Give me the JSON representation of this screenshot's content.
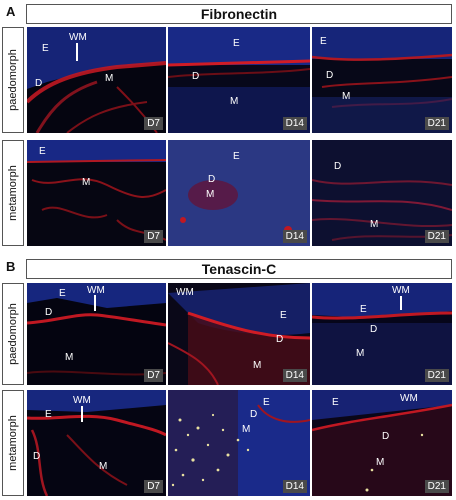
{
  "panel_a": {
    "letter": "A",
    "title": "Fibronectin",
    "rows": [
      {
        "label": "paedomorph",
        "tiles": [
          {
            "day": "D7",
            "labels": [
              "E",
              "D",
              "M",
              "WM"
            ]
          },
          {
            "day": "D14",
            "labels": [
              "E",
              "D",
              "M"
            ]
          },
          {
            "day": "D21",
            "labels": [
              "E",
              "D",
              "M"
            ]
          }
        ]
      },
      {
        "label": "metamorph",
        "tiles": [
          {
            "day": "D7",
            "labels": [
              "E",
              "M"
            ]
          },
          {
            "day": "D14",
            "labels": [
              "E",
              "D",
              "M"
            ]
          },
          {
            "day": "D21",
            "labels": [
              "D",
              "M"
            ]
          }
        ]
      }
    ]
  },
  "panel_b": {
    "letter": "B",
    "title": "Tenascin-C",
    "rows": [
      {
        "label": "paedomorph",
        "tiles": [
          {
            "day": "D7",
            "labels": [
              "E",
              "D",
              "M",
              "WM"
            ]
          },
          {
            "day": "D14",
            "labels": [
              "E",
              "D",
              "M",
              "WM"
            ]
          },
          {
            "day": "D21",
            "labels": [
              "E",
              "D",
              "M",
              "WM"
            ]
          }
        ]
      },
      {
        "label": "metamorph",
        "tiles": [
          {
            "day": "D7",
            "labels": [
              "E",
              "D",
              "M",
              "WM"
            ]
          },
          {
            "day": "D14",
            "labels": [
              "E",
              "D",
              "M"
            ]
          },
          {
            "day": "D21",
            "labels": [
              "E",
              "D",
              "M",
              "WM"
            ]
          }
        ]
      }
    ]
  },
  "colors": {
    "background": "#000000",
    "nuclei": "#1c2f9a",
    "stain": "#c01822",
    "autofluorescence": "#e8e0a0"
  }
}
